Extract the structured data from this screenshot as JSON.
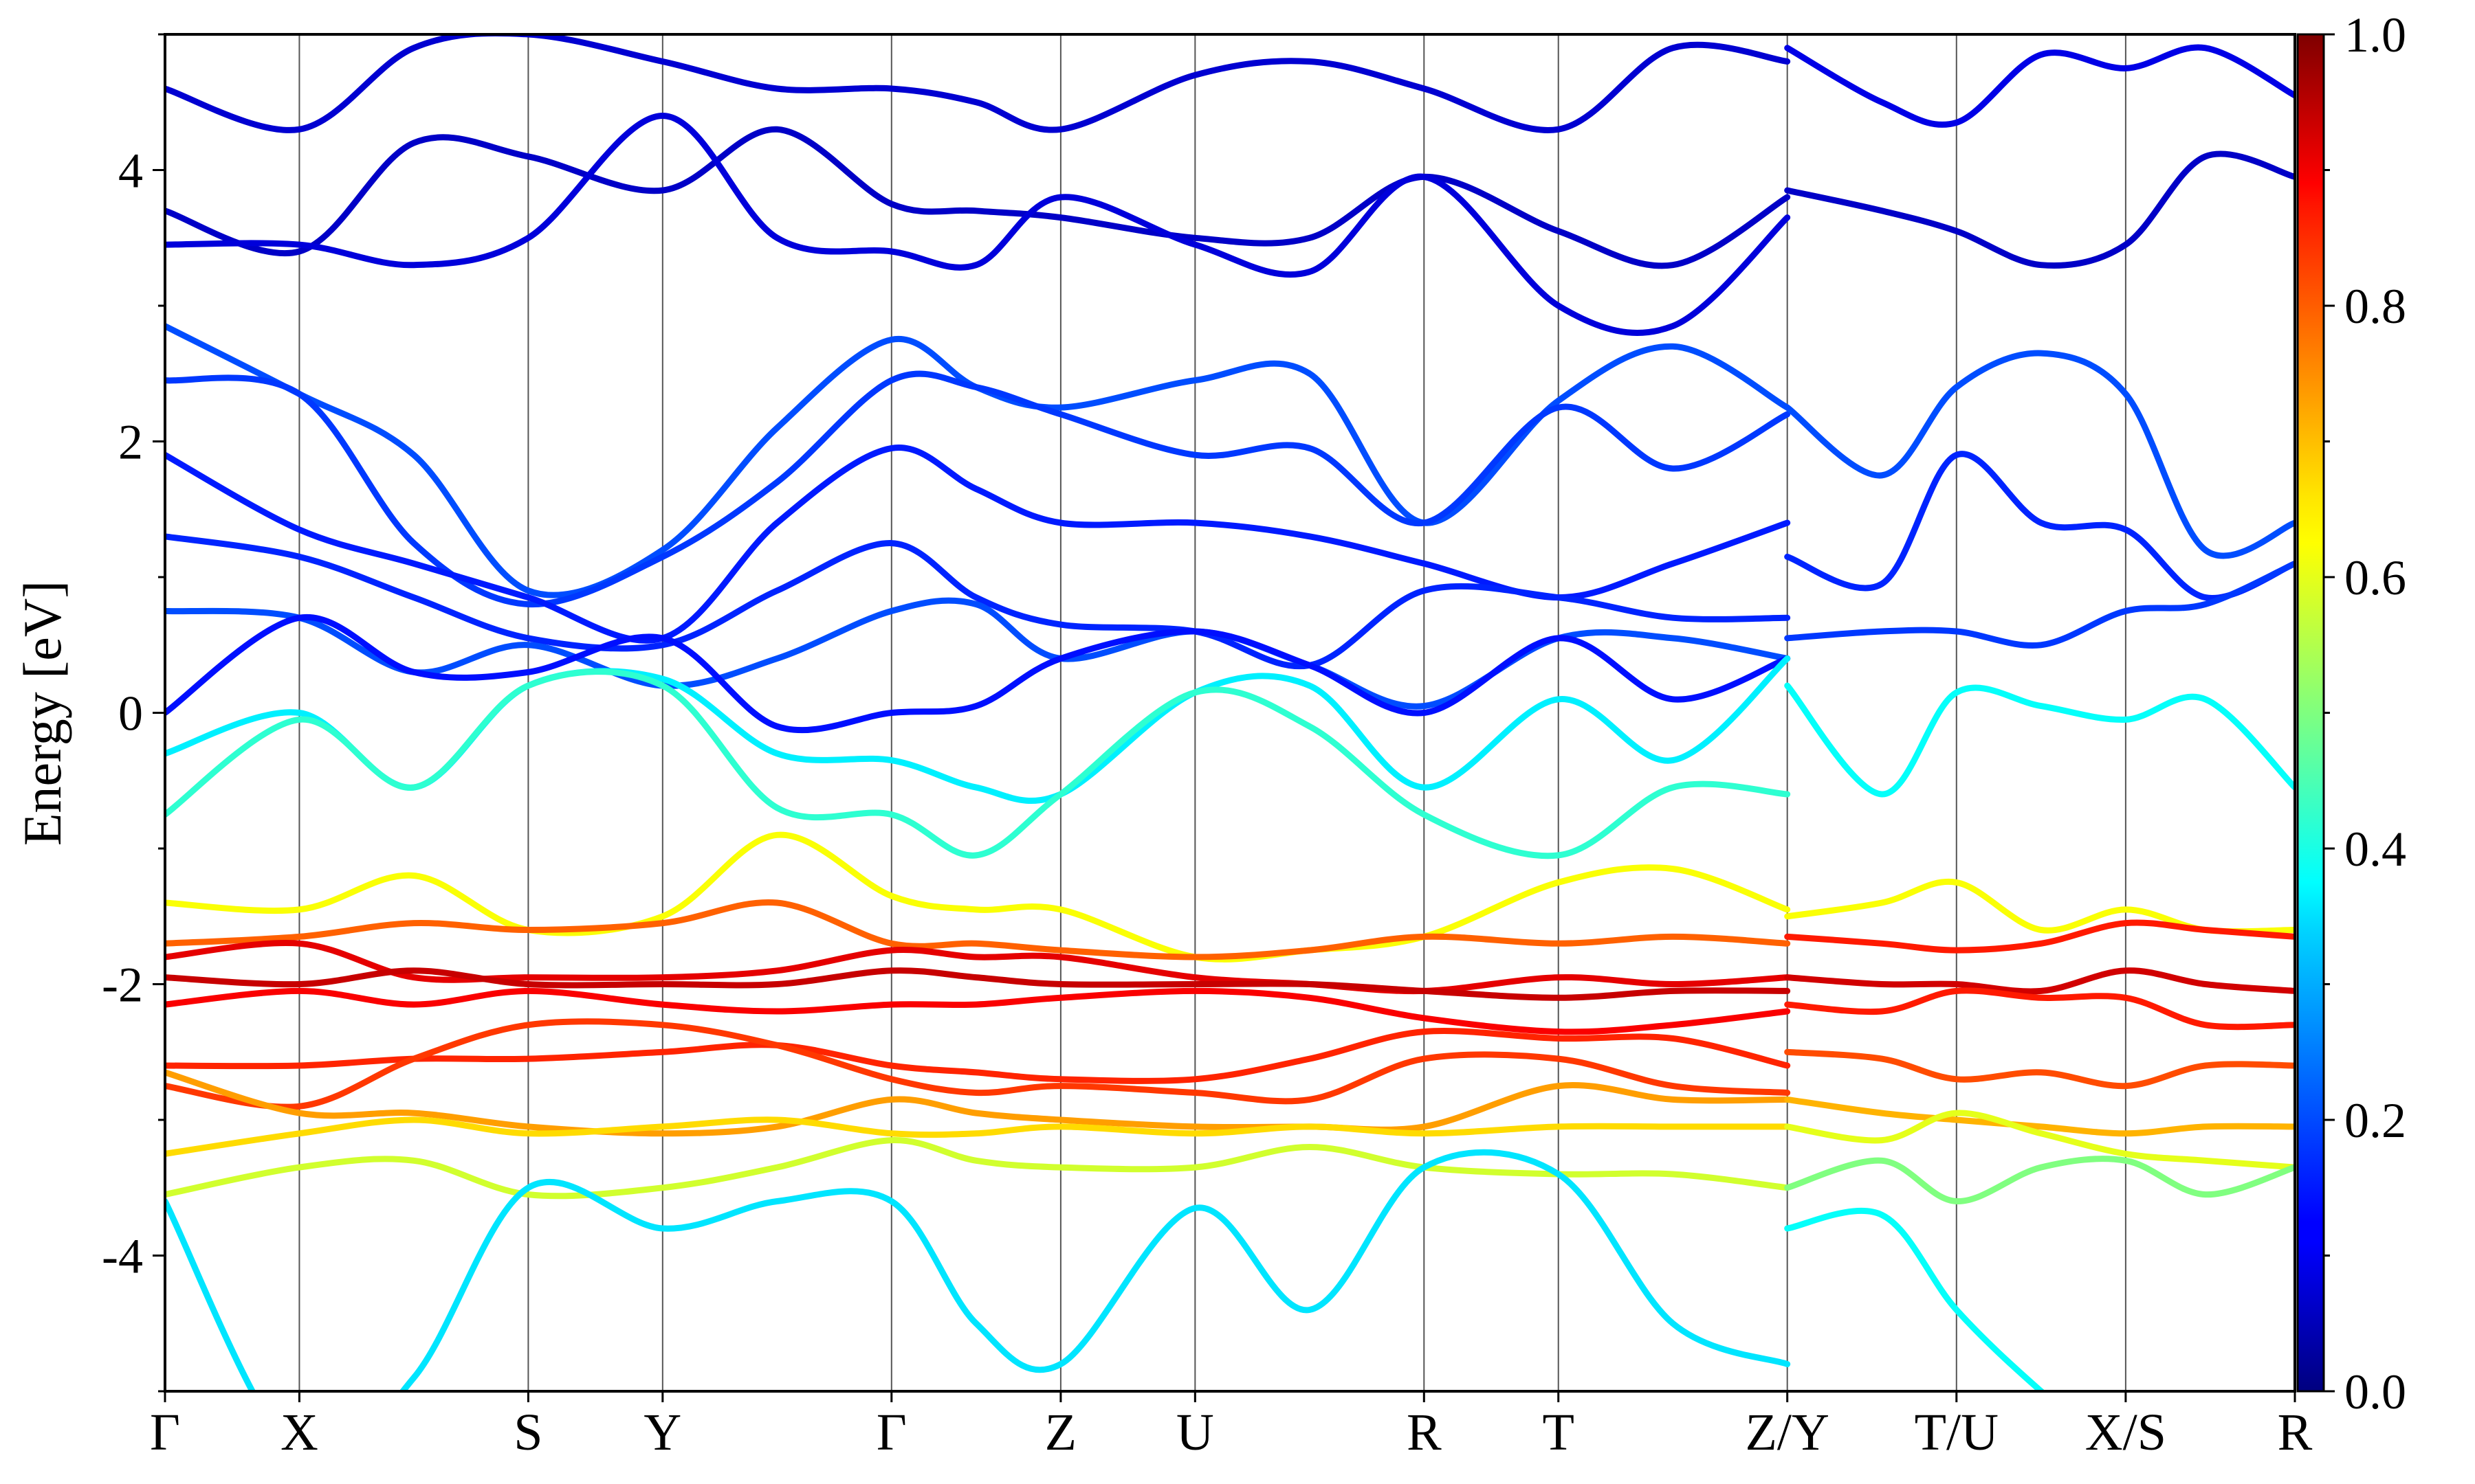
{
  "chart_data": {
    "type": "line",
    "title": "",
    "xlabel": "",
    "ylabel": "Energy [eV]",
    "ylim": [
      -5,
      5
    ],
    "yticks": [
      {
        "value": 4,
        "label": "4"
      },
      {
        "value": 2,
        "label": "2"
      },
      {
        "value": 0,
        "label": "0"
      },
      {
        "value": -2,
        "label": "-2"
      },
      {
        "value": -4,
        "label": "-4"
      }
    ],
    "kpath": [
      {
        "label": "Γ",
        "x": 0.0
      },
      {
        "label": "X",
        "x": 0.54
      },
      {
        "label": "S",
        "x": 1.46
      },
      {
        "label": "Y",
        "x": 2.0
      },
      {
        "label": "Γ",
        "x": 2.92
      },
      {
        "label": "Z",
        "x": 3.6
      },
      {
        "label": "U",
        "x": 4.14
      },
      {
        "label": "R",
        "x": 5.06
      },
      {
        "label": "T",
        "x": 5.6
      },
      {
        "label": "Z/Y",
        "x": 6.52
      },
      {
        "label": "T/U",
        "x": 7.2
      },
      {
        "label": "X/S",
        "x": 7.88
      },
      {
        "label": "R",
        "x": 8.56
      }
    ],
    "colorbar": {
      "colormap": "jet",
      "range": [
        0,
        1
      ],
      "ticks": [
        {
          "value": 0.0,
          "label": "0.0"
        },
        {
          "value": 0.2,
          "label": "0.2"
        },
        {
          "value": 0.4,
          "label": "0.4"
        },
        {
          "value": 0.6,
          "label": "0.6"
        },
        {
          "value": 0.8,
          "label": "0.8"
        },
        {
          "value": 1.0,
          "label": "1.0"
        }
      ]
    },
    "bands": [
      {
        "w": 0.08,
        "x": [
          0,
          0.54,
          1.0,
          1.46,
          2.0,
          2.46,
          2.92,
          3.26,
          3.6,
          4.14,
          4.6,
          5.06,
          5.6,
          6.06,
          6.52
        ],
        "y": [
          4.6,
          4.3,
          4.9,
          5.0,
          4.8,
          4.6,
          4.6,
          4.5,
          4.3,
          4.7,
          4.8,
          4.6,
          4.3,
          4.9,
          4.8
        ]
      },
      {
        "w": 0.07,
        "x": [
          0,
          0.54,
          1.0,
          1.46,
          2.0,
          2.46,
          2.92,
          3.26,
          3.6,
          4.14,
          4.6,
          5.06,
          5.6,
          6.06,
          6.52
        ],
        "y": [
          3.7,
          3.4,
          4.2,
          4.1,
          3.85,
          4.3,
          3.75,
          3.7,
          3.65,
          3.5,
          3.5,
          3.95,
          3.55,
          3.3,
          3.8
        ]
      },
      {
        "w": 0.09,
        "x": [
          0,
          0.54,
          1.0,
          1.46,
          2.0,
          2.46,
          2.92,
          3.26,
          3.6,
          4.14,
          4.6,
          5.06,
          5.6,
          6.06,
          6.52
        ],
        "y": [
          3.45,
          3.45,
          3.3,
          3.5,
          4.4,
          3.5,
          3.4,
          3.3,
          3.8,
          3.45,
          3.25,
          3.95,
          3.0,
          2.85,
          3.65
        ]
      },
      {
        "w": 0.2,
        "x": [
          0,
          0.54,
          1.0,
          1.46,
          2.0,
          2.46,
          2.92,
          3.26,
          3.6,
          4.14,
          4.6,
          5.06,
          5.6,
          6.06,
          6.52
        ],
        "y": [
          2.85,
          2.35,
          1.9,
          0.9,
          1.2,
          2.1,
          2.75,
          2.4,
          2.25,
          2.45,
          2.5,
          1.4,
          2.3,
          2.7,
          2.25
        ]
      },
      {
        "w": 0.18,
        "x": [
          0,
          0.54,
          1.0,
          1.46,
          2.0,
          2.46,
          2.92,
          3.26,
          3.6,
          4.14,
          4.6,
          5.06,
          5.6,
          6.06,
          6.52
        ],
        "y": [
          2.45,
          2.35,
          1.25,
          0.8,
          1.15,
          1.7,
          2.45,
          2.4,
          2.2,
          1.9,
          1.95,
          1.4,
          2.25,
          1.8,
          2.2
        ]
      },
      {
        "w": 0.15,
        "x": [
          0,
          0.54,
          1.0,
          1.46,
          2.0,
          2.46,
          2.92,
          3.26,
          3.6,
          4.14,
          4.6,
          5.06,
          5.6,
          6.06,
          6.52
        ],
        "y": [
          1.9,
          1.35,
          1.1,
          0.85,
          0.55,
          1.4,
          1.95,
          1.65,
          1.4,
          1.4,
          1.3,
          1.1,
          0.85,
          1.1,
          1.4
        ]
      },
      {
        "w": 0.16,
        "x": [
          0,
          0.54,
          1.0,
          1.46,
          2.0,
          2.46,
          2.92,
          3.26,
          3.6,
          4.14,
          4.6,
          5.06,
          5.6,
          6.06,
          6.52
        ],
        "y": [
          1.3,
          1.15,
          0.85,
          0.55,
          0.5,
          0.9,
          1.25,
          0.85,
          0.65,
          0.6,
          0.35,
          0.9,
          0.85,
          0.7,
          0.7
        ]
      },
      {
        "w": 0.2,
        "x": [
          0,
          0.54,
          1.0,
          1.46,
          2.0,
          2.46,
          2.92,
          3.26,
          3.6,
          4.14,
          4.6,
          5.06,
          5.6,
          6.06,
          6.52
        ],
        "y": [
          0.75,
          0.7,
          0.3,
          0.5,
          0.2,
          0.4,
          0.75,
          0.8,
          0.4,
          0.6,
          0.35,
          0.05,
          0.55,
          0.55,
          0.4
        ]
      },
      {
        "w": 0.14,
        "x": [
          0,
          0.54,
          1.0,
          1.46,
          2.0,
          2.46,
          2.92,
          3.26,
          3.6,
          4.14,
          4.6,
          5.06,
          5.6,
          6.06,
          6.52
        ],
        "y": [
          0.0,
          0.7,
          0.3,
          0.3,
          0.55,
          -0.1,
          0.0,
          0.05,
          0.4,
          0.6,
          0.35,
          0.0,
          0.55,
          0.1,
          0.4
        ]
      },
      {
        "w": 0.36,
        "x": [
          0,
          0.54,
          1.0,
          1.46,
          2.0,
          2.46,
          2.92,
          3.26,
          3.6,
          4.14,
          4.6,
          5.06,
          5.6,
          6.06,
          6.52
        ],
        "y": [
          -0.3,
          0.0,
          -0.55,
          0.2,
          0.25,
          -0.3,
          -0.35,
          -0.55,
          -0.6,
          0.15,
          0.2,
          -0.55,
          0.1,
          -0.35,
          0.4
        ]
      },
      {
        "w": 0.42,
        "x": [
          0,
          0.54,
          1.0,
          1.46,
          2.0,
          2.46,
          2.92,
          3.26,
          3.6,
          4.14,
          4.6,
          5.06,
          5.6,
          6.06,
          6.52
        ],
        "y": [
          -0.75,
          -0.05,
          -0.55,
          0.2,
          0.2,
          -0.7,
          -0.75,
          -1.05,
          -0.6,
          0.15,
          -0.1,
          -0.75,
          -1.05,
          -0.55,
          -0.6
        ]
      },
      {
        "w": 0.62,
        "x": [
          0,
          0.54,
          1.0,
          1.46,
          2.0,
          2.46,
          2.92,
          3.26,
          3.6,
          4.14,
          4.6,
          5.06,
          5.6,
          6.06,
          6.52
        ],
        "y": [
          -1.4,
          -1.45,
          -1.2,
          -1.6,
          -1.5,
          -0.9,
          -1.35,
          -1.45,
          -1.45,
          -1.8,
          -1.75,
          -1.65,
          -1.25,
          -1.15,
          -1.45
        ]
      },
      {
        "w": 0.78,
        "x": [
          0,
          0.54,
          1.0,
          1.46,
          2.0,
          2.46,
          2.92,
          3.26,
          3.6,
          4.14,
          4.6,
          5.06,
          5.6,
          6.06,
          6.52
        ],
        "y": [
          -1.7,
          -1.65,
          -1.55,
          -1.6,
          -1.55,
          -1.4,
          -1.7,
          -1.7,
          -1.75,
          -1.8,
          -1.75,
          -1.65,
          -1.7,
          -1.65,
          -1.7
        ]
      },
      {
        "w": 0.9,
        "x": [
          0,
          0.54,
          1.0,
          1.46,
          2.0,
          2.46,
          2.92,
          3.26,
          3.6,
          4.14,
          4.6,
          5.06,
          5.6,
          6.06,
          6.52
        ],
        "y": [
          -1.8,
          -1.7,
          -1.95,
          -1.95,
          -1.95,
          -1.9,
          -1.75,
          -1.8,
          -1.8,
          -1.95,
          -2.0,
          -2.05,
          -1.95,
          -2.0,
          -1.95
        ]
      },
      {
        "w": 0.93,
        "x": [
          0,
          0.54,
          1.0,
          1.46,
          2.0,
          2.46,
          2.92,
          3.26,
          3.6,
          4.14,
          4.6,
          5.06,
          5.6,
          6.06,
          6.52
        ],
        "y": [
          -1.95,
          -2.0,
          -1.9,
          -2.0,
          -2.0,
          -2.0,
          -1.9,
          -1.95,
          -2.0,
          -2.0,
          -2.0,
          -2.05,
          -2.1,
          -2.05,
          -2.05
        ]
      },
      {
        "w": 0.88,
        "x": [
          0,
          0.54,
          1.0,
          1.46,
          2.0,
          2.46,
          2.92,
          3.26,
          3.6,
          4.14,
          4.6,
          5.06,
          5.6,
          6.06,
          6.52
        ],
        "y": [
          -2.15,
          -2.05,
          -2.15,
          -2.05,
          -2.15,
          -2.2,
          -2.15,
          -2.15,
          -2.1,
          -2.05,
          -2.1,
          -2.25,
          -2.35,
          -2.3,
          -2.2
        ]
      },
      {
        "w": 0.84,
        "x": [
          0,
          0.54,
          1.0,
          1.46,
          2.0,
          2.46,
          2.92,
          3.26,
          3.6,
          4.14,
          4.6,
          5.06,
          5.6,
          6.06,
          6.52
        ],
        "y": [
          -2.6,
          -2.6,
          -2.55,
          -2.55,
          -2.5,
          -2.45,
          -2.6,
          -2.65,
          -2.7,
          -2.7,
          -2.55,
          -2.35,
          -2.4,
          -2.4,
          -2.6
        ]
      },
      {
        "w": 0.82,
        "x": [
          0,
          0.54,
          1.0,
          1.46,
          2.0,
          2.46,
          2.92,
          3.26,
          3.6,
          4.14,
          4.6,
          5.06,
          5.6,
          6.06,
          6.52
        ],
        "y": [
          -2.75,
          -2.9,
          -2.55,
          -2.3,
          -2.3,
          -2.45,
          -2.7,
          -2.8,
          -2.75,
          -2.8,
          -2.85,
          -2.55,
          -2.55,
          -2.75,
          -2.8
        ]
      },
      {
        "w": 0.72,
        "x": [
          0,
          0.54,
          1.0,
          1.46,
          2.0,
          2.46,
          2.92,
          3.26,
          3.6,
          4.14,
          4.6,
          5.06,
          5.6,
          6.06,
          6.52
        ],
        "y": [
          -2.65,
          -2.95,
          -2.95,
          -3.05,
          -3.1,
          -3.05,
          -2.85,
          -2.95,
          -3.0,
          -3.05,
          -3.05,
          -3.05,
          -2.75,
          -2.85,
          -2.85
        ]
      },
      {
        "w": 0.66,
        "x": [
          0,
          0.54,
          1.0,
          1.46,
          2.0,
          2.46,
          2.92,
          3.26,
          3.6,
          4.14,
          4.6,
          5.06,
          5.6,
          6.06,
          6.52
        ],
        "y": [
          -3.25,
          -3.1,
          -3.0,
          -3.1,
          -3.05,
          -3.0,
          -3.1,
          -3.1,
          -3.05,
          -3.1,
          -3.05,
          -3.1,
          -3.05,
          -3.05,
          -3.05
        ]
      },
      {
        "w": 0.58,
        "x": [
          0,
          0.54,
          1.0,
          1.46,
          2.0,
          2.46,
          2.92,
          3.26,
          3.6,
          4.14,
          4.6,
          5.06,
          5.6,
          6.06,
          6.52
        ],
        "y": [
          -3.55,
          -3.35,
          -3.3,
          -3.55,
          -3.5,
          -3.35,
          -3.15,
          -3.3,
          -3.35,
          -3.35,
          -3.2,
          -3.35,
          -3.4,
          -3.4,
          -3.5
        ]
      },
      {
        "w": 0.35,
        "x": [
          0,
          0.54,
          1.0,
          1.46,
          2.0,
          2.46,
          2.92,
          3.26,
          3.6,
          4.14,
          4.6,
          5.06,
          5.6,
          6.06,
          6.52
        ],
        "y": [
          -3.6,
          -5.5,
          -4.9,
          -3.5,
          -3.8,
          -3.6,
          -3.6,
          -4.5,
          -4.8,
          -3.65,
          -4.4,
          -3.35,
          -3.4,
          -4.5,
          -4.8
        ]
      },
      {
        "w": 0.1,
        "x": [
          6.52,
          6.9,
          7.2,
          7.54,
          7.88,
          8.2,
          8.56
        ],
        "y": [
          4.9,
          4.5,
          4.35,
          4.85,
          4.75,
          4.9,
          4.55
        ]
      },
      {
        "w": 0.07,
        "x": [
          6.52,
          6.9,
          7.2,
          7.54,
          7.88,
          8.2,
          8.56
        ],
        "y": [
          3.85,
          3.7,
          3.55,
          3.3,
          3.45,
          4.1,
          3.95
        ]
      },
      {
        "w": 0.2,
        "x": [
          6.52,
          6.9,
          7.2,
          7.54,
          7.88,
          8.2,
          8.56
        ],
        "y": [
          2.25,
          1.75,
          2.4,
          2.65,
          2.35,
          1.2,
          1.4
        ]
      },
      {
        "w": 0.16,
        "x": [
          6.52,
          6.9,
          7.2,
          7.54,
          7.88,
          8.2,
          8.56
        ],
        "y": [
          1.15,
          0.95,
          1.9,
          1.4,
          1.35,
          0.85,
          1.1
        ]
      },
      {
        "w": 0.18,
        "x": [
          6.52,
          6.9,
          7.2,
          7.54,
          7.88,
          8.2,
          8.56
        ],
        "y": [
          0.55,
          0.6,
          0.6,
          0.5,
          0.75,
          0.8,
          1.1
        ]
      },
      {
        "w": 0.38,
        "x": [
          6.52,
          6.9,
          7.2,
          7.54,
          7.88,
          8.2,
          8.56
        ],
        "y": [
          0.2,
          -0.6,
          0.15,
          0.05,
          -0.05,
          0.1,
          -0.55
        ]
      },
      {
        "w": 0.62,
        "x": [
          6.52,
          6.9,
          7.2,
          7.54,
          7.88,
          8.2,
          8.56
        ],
        "y": [
          -1.5,
          -1.4,
          -1.25,
          -1.6,
          -1.45,
          -1.6,
          -1.6
        ]
      },
      {
        "w": 0.85,
        "x": [
          6.52,
          6.9,
          7.2,
          7.54,
          7.88,
          8.2,
          8.56
        ],
        "y": [
          -1.65,
          -1.7,
          -1.75,
          -1.7,
          -1.55,
          -1.6,
          -1.65
        ]
      },
      {
        "w": 0.92,
        "x": [
          6.52,
          6.9,
          7.2,
          7.54,
          7.88,
          8.2,
          8.56
        ],
        "y": [
          -1.95,
          -2.0,
          -2.0,
          -2.05,
          -1.9,
          -2.0,
          -2.05
        ]
      },
      {
        "w": 0.85,
        "x": [
          6.52,
          6.9,
          7.2,
          7.54,
          7.88,
          8.2,
          8.56
        ],
        "y": [
          -2.15,
          -2.2,
          -2.05,
          -2.1,
          -2.1,
          -2.3,
          -2.3
        ]
      },
      {
        "w": 0.8,
        "x": [
          6.52,
          6.9,
          7.2,
          7.54,
          7.88,
          8.2,
          8.56
        ],
        "y": [
          -2.5,
          -2.55,
          -2.7,
          -2.65,
          -2.75,
          -2.6,
          -2.6
        ]
      },
      {
        "w": 0.7,
        "x": [
          6.52,
          6.9,
          7.2,
          7.54,
          7.88,
          8.2,
          8.56
        ],
        "y": [
          -2.85,
          -2.95,
          -3.0,
          -3.05,
          -3.1,
          -3.05,
          -3.05
        ]
      },
      {
        "w": 0.6,
        "x": [
          6.52,
          6.9,
          7.2,
          7.54,
          7.88,
          8.2,
          8.56
        ],
        "y": [
          -3.05,
          -3.15,
          -2.95,
          -3.1,
          -3.25,
          -3.3,
          -3.35
        ]
      },
      {
        "w": 0.5,
        "x": [
          6.52,
          6.9,
          7.2,
          7.54,
          7.88,
          8.2,
          8.56
        ],
        "y": [
          -3.5,
          -3.3,
          -3.6,
          -3.35,
          -3.3,
          -3.55,
          -3.35
        ]
      },
      {
        "w": 0.38,
        "x": [
          6.52,
          6.9,
          7.2,
          7.54,
          7.88,
          8.2,
          8.56
        ],
        "y": [
          -3.8,
          -3.7,
          -4.4,
          -5.0,
          -5.5,
          -5.5,
          -5.5
        ]
      }
    ]
  }
}
